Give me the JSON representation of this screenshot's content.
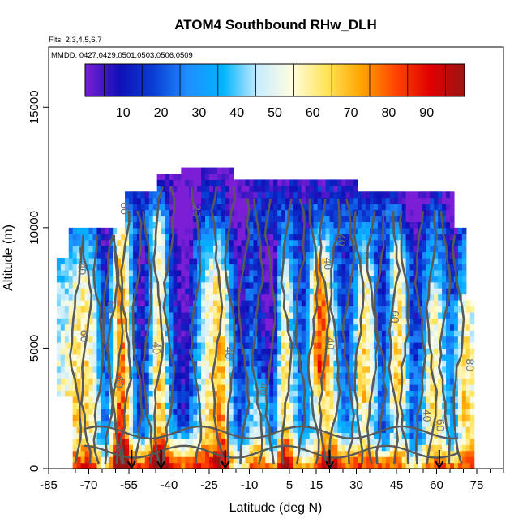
{
  "chart_data": {
    "type": "heatmap",
    "title": "ATOM4 Southbound RHw_DLH",
    "flights_label": "Flts: 2,3,4,5,6,7",
    "dates_label": "MMDD: 0427,0429,0501,0503,0506,0509",
    "xlabel": "Latitude (deg N)",
    "ylabel": "Altitude (m)",
    "xlim": [
      -85,
      85
    ],
    "ylim": [
      0,
      17500
    ],
    "x_ticks": [
      -85,
      -70,
      -55,
      -40,
      -25,
      -10,
      5,
      15,
      30,
      45,
      60,
      75
    ],
    "y_ticks": [
      0,
      5000,
      10000,
      15000
    ],
    "colorbar": {
      "range": [
        0,
        100
      ],
      "ticks": [
        10,
        20,
        30,
        40,
        50,
        60,
        70,
        80,
        90
      ],
      "stops": [
        "#7a1fd6",
        "#1010b8",
        "#0a3fd6",
        "#1e90ff",
        "#00b4ff",
        "#c8ecff",
        "#fffde0",
        "#ffe45a",
        "#ffa500",
        "#ff4500",
        "#e00000",
        "#9a1414"
      ]
    },
    "flight_arrow_latitudes": [
      -54,
      -43,
      -19,
      20,
      61
    ],
    "contour_labels": [
      {
        "text": "40",
        "lat": -74,
        "alt": 8300
      },
      {
        "text": "60",
        "lat": -73,
        "alt": 5500
      },
      {
        "text": "60",
        "lat": -58,
        "alt": 10800
      },
      {
        "text": "40",
        "lat": -46,
        "alt": 5000
      },
      {
        "text": "20",
        "lat": -31,
        "alt": 10700
      },
      {
        "text": "60",
        "lat": -63,
        "alt": 6700
      },
      {
        "text": "60",
        "lat": -60,
        "alt": 3600
      },
      {
        "text": "40",
        "lat": -19,
        "alt": 4800
      },
      {
        "text": "40",
        "lat": 23,
        "alt": 9500
      },
      {
        "text": "40",
        "lat": 19,
        "alt": 5200
      },
      {
        "text": "40",
        "lat": 18,
        "alt": 8500
      },
      {
        "text": "40",
        "lat": -6,
        "alt": 3300
      },
      {
        "text": "60",
        "lat": 43,
        "alt": 6300
      },
      {
        "text": "60",
        "lat": 60,
        "alt": 1800
      },
      {
        "text": "80",
        "lat": 71,
        "alt": 4300
      },
      {
        "text": "40",
        "lat": 55,
        "alt": 2200
      }
    ]
  }
}
